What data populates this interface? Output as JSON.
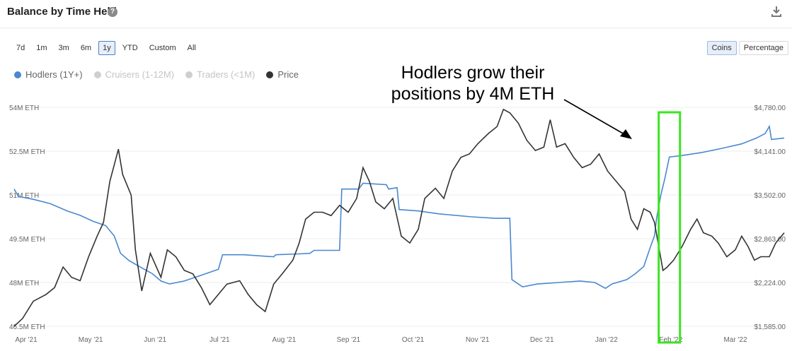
{
  "header": {
    "title": "Balance by Time Held",
    "help_icon": "question-circle-icon",
    "help_glyph": "?",
    "download_icon": "download-icon"
  },
  "range_buttons": [
    {
      "label": "7d",
      "active": false
    },
    {
      "label": "1m",
      "active": false
    },
    {
      "label": "3m",
      "active": false
    },
    {
      "label": "6m",
      "active": false
    },
    {
      "label": "1y",
      "active": true
    },
    {
      "label": "YTD",
      "active": false
    },
    {
      "label": "Custom",
      "active": false
    },
    {
      "label": "All",
      "active": false
    }
  ],
  "mode_buttons": [
    {
      "label": "Coins",
      "active": true
    },
    {
      "label": "Percentage",
      "active": false
    }
  ],
  "annotation": {
    "line1": "Hodlers grow their",
    "line2": "positions by 4M ETH"
  },
  "colors": {
    "hodlers": "#4a88d0",
    "price": "#333333",
    "disabled": "#cfcfcf",
    "highlight": "#3ae61f",
    "grid": "#eeeeee"
  },
  "chart_data": {
    "type": "line",
    "title": "Balance by Time Held",
    "legend": [
      {
        "name": "Hodlers (1Y+)",
        "enabled": true,
        "color": "#4a88d0"
      },
      {
        "name": "Cruisers (1-12M)",
        "enabled": false,
        "color": "#cfcfcf"
      },
      {
        "name": "Traders (<1M)",
        "enabled": false,
        "color": "#cfcfcf"
      },
      {
        "name": "Price",
        "enabled": true,
        "color": "#333333"
      }
    ],
    "legend_position": "top-left",
    "grid": true,
    "x_ticks": [
      "Apr '21",
      "May '21",
      "Jun '21",
      "Jul '21",
      "Aug '21",
      "Sep '21",
      "Oct '21",
      "Nov '21",
      "Dec '21",
      "Jan '22",
      "Feb '22",
      "Mar '22"
    ],
    "x_range": [
      "2021-03-24",
      "2022-03-21"
    ],
    "y_left": {
      "ticks": [
        "54M ETH",
        "52.5M ETH",
        "51M ETH",
        "49.5M ETH",
        "48M ETH",
        "46.5M ETH"
      ],
      "range": [
        46.5,
        54
      ],
      "unit": "M ETH"
    },
    "y_right": {
      "ticks": [
        "$4,780.00",
        "$4,141.00",
        "$3,502.00",
        "$2,863.00",
        "$2,224.00",
        "$1,585.00"
      ],
      "range": [
        1585,
        4780
      ],
      "unit": "USD"
    },
    "series": [
      {
        "name": "Hodlers (1Y+)",
        "axis": "left",
        "points": [
          [
            "2021-03-24",
            51.2
          ],
          [
            "2021-03-26",
            50.95
          ],
          [
            "2021-04-02",
            50.85
          ],
          [
            "2021-04-10",
            50.7
          ],
          [
            "2021-04-18",
            50.45
          ],
          [
            "2021-04-24",
            50.3
          ],
          [
            "2021-04-30",
            50.1
          ],
          [
            "2021-05-06",
            49.95
          ],
          [
            "2021-05-10",
            49.6
          ],
          [
            "2021-05-13",
            49.0
          ],
          [
            "2021-05-17",
            48.75
          ],
          [
            "2021-05-23",
            48.5
          ],
          [
            "2021-05-28",
            48.3
          ],
          [
            "2021-06-01",
            48.05
          ],
          [
            "2021-06-05",
            47.95
          ],
          [
            "2021-06-12",
            48.05
          ],
          [
            "2021-06-18",
            48.2
          ],
          [
            "2021-06-24",
            48.35
          ],
          [
            "2021-06-28",
            48.45
          ],
          [
            "2021-06-30",
            48.95
          ],
          [
            "2021-07-10",
            48.95
          ],
          [
            "2021-07-20",
            48.9
          ],
          [
            "2021-07-24",
            48.88
          ],
          [
            "2021-07-25",
            48.95
          ],
          [
            "2021-08-05",
            48.98
          ],
          [
            "2021-08-10",
            49.0
          ],
          [
            "2021-08-12",
            49.1
          ],
          [
            "2021-08-24",
            49.1
          ],
          [
            "2021-08-25",
            51.2
          ],
          [
            "2021-09-02",
            51.2
          ],
          [
            "2021-09-04",
            51.4
          ],
          [
            "2021-09-15",
            51.35
          ],
          [
            "2021-09-16",
            51.2
          ],
          [
            "2021-09-20",
            51.25
          ],
          [
            "2021-09-21",
            50.5
          ],
          [
            "2021-09-30",
            50.45
          ],
          [
            "2021-10-10",
            50.35
          ],
          [
            "2021-10-25",
            50.25
          ],
          [
            "2021-11-05",
            50.2
          ],
          [
            "2021-11-12",
            50.2
          ],
          [
            "2021-11-13",
            48.1
          ],
          [
            "2021-11-18",
            47.85
          ],
          [
            "2021-11-25",
            47.95
          ],
          [
            "2021-12-05",
            48.0
          ],
          [
            "2021-12-15",
            48.05
          ],
          [
            "2021-12-22",
            48.0
          ],
          [
            "2021-12-27",
            47.8
          ],
          [
            "2021-12-30",
            47.95
          ],
          [
            "2022-01-06",
            48.1
          ],
          [
            "2022-01-10",
            48.3
          ],
          [
            "2022-01-14",
            48.55
          ],
          [
            "2022-01-17",
            49.2
          ],
          [
            "2022-01-19",
            49.6
          ],
          [
            "2022-01-20",
            50.2
          ],
          [
            "2022-01-22",
            51.0
          ],
          [
            "2022-01-24",
            51.6
          ],
          [
            "2022-01-26",
            52.3
          ],
          [
            "2022-02-01",
            52.35
          ],
          [
            "2022-02-10",
            52.45
          ],
          [
            "2022-02-20",
            52.6
          ],
          [
            "2022-03-01",
            52.75
          ],
          [
            "2022-03-08",
            52.95
          ],
          [
            "2022-03-12",
            53.1
          ],
          [
            "2022-03-14",
            53.35
          ],
          [
            "2022-03-15",
            52.9
          ],
          [
            "2022-03-21",
            52.95
          ]
        ]
      },
      {
        "name": "Price",
        "axis": "right",
        "points": [
          [
            "2021-03-24",
            1585
          ],
          [
            "2021-03-28",
            1700
          ],
          [
            "2021-04-02",
            1950
          ],
          [
            "2021-04-08",
            2050
          ],
          [
            "2021-04-12",
            2150
          ],
          [
            "2021-04-16",
            2450
          ],
          [
            "2021-04-20",
            2300
          ],
          [
            "2021-04-24",
            2250
          ],
          [
            "2021-04-28",
            2600
          ],
          [
            "2021-05-02",
            2900
          ],
          [
            "2021-05-05",
            3100
          ],
          [
            "2021-05-08",
            3700
          ],
          [
            "2021-05-12",
            4170
          ],
          [
            "2021-05-14",
            3800
          ],
          [
            "2021-05-18",
            3500
          ],
          [
            "2021-05-20",
            2700
          ],
          [
            "2021-05-23",
            2100
          ],
          [
            "2021-05-27",
            2650
          ],
          [
            "2021-06-01",
            2300
          ],
          [
            "2021-06-04",
            2700
          ],
          [
            "2021-06-08",
            2600
          ],
          [
            "2021-06-12",
            2400
          ],
          [
            "2021-06-16",
            2350
          ],
          [
            "2021-06-20",
            2150
          ],
          [
            "2021-06-24",
            1900
          ],
          [
            "2021-06-28",
            2050
          ],
          [
            "2021-07-02",
            2200
          ],
          [
            "2021-07-08",
            2250
          ],
          [
            "2021-07-12",
            2050
          ],
          [
            "2021-07-16",
            1900
          ],
          [
            "2021-07-20",
            1800
          ],
          [
            "2021-07-24",
            2200
          ],
          [
            "2021-07-28",
            2350
          ],
          [
            "2021-08-02",
            2550
          ],
          [
            "2021-08-05",
            2800
          ],
          [
            "2021-08-08",
            3150
          ],
          [
            "2021-08-12",
            3250
          ],
          [
            "2021-08-16",
            3250
          ],
          [
            "2021-08-20",
            3200
          ],
          [
            "2021-08-24",
            3350
          ],
          [
            "2021-08-28",
            3250
          ],
          [
            "2021-09-01",
            3450
          ],
          [
            "2021-09-04",
            3900
          ],
          [
            "2021-09-07",
            3700
          ],
          [
            "2021-09-10",
            3400
          ],
          [
            "2021-09-14",
            3300
          ],
          [
            "2021-09-18",
            3450
          ],
          [
            "2021-09-22",
            2900
          ],
          [
            "2021-09-26",
            2800
          ],
          [
            "2021-09-30",
            3000
          ],
          [
            "2021-10-03",
            3450
          ],
          [
            "2021-10-08",
            3600
          ],
          [
            "2021-10-12",
            3450
          ],
          [
            "2021-10-16",
            3850
          ],
          [
            "2021-10-20",
            4050
          ],
          [
            "2021-10-24",
            4100
          ],
          [
            "2021-10-28",
            4250
          ],
          [
            "2021-11-02",
            4400
          ],
          [
            "2021-11-06",
            4500
          ],
          [
            "2021-11-09",
            4750
          ],
          [
            "2021-11-12",
            4700
          ],
          [
            "2021-11-16",
            4550
          ],
          [
            "2021-11-20",
            4300
          ],
          [
            "2021-11-24",
            4150
          ],
          [
            "2021-11-28",
            4200
          ],
          [
            "2021-12-01",
            4600
          ],
          [
            "2021-12-04",
            4200
          ],
          [
            "2021-12-08",
            4250
          ],
          [
            "2021-12-12",
            4050
          ],
          [
            "2021-12-16",
            3900
          ],
          [
            "2021-12-20",
            3950
          ],
          [
            "2021-12-24",
            4100
          ],
          [
            "2021-12-28",
            3850
          ],
          [
            "2022-01-01",
            3700
          ],
          [
            "2022-01-05",
            3550
          ],
          [
            "2022-01-08",
            3150
          ],
          [
            "2022-01-11",
            3000
          ],
          [
            "2022-01-14",
            3300
          ],
          [
            "2022-01-17",
            3250
          ],
          [
            "2022-01-19",
            3100
          ],
          [
            "2022-01-21",
            2750
          ],
          [
            "2022-01-23",
            2400
          ],
          [
            "2022-01-25",
            2450
          ],
          [
            "2022-01-28",
            2550
          ],
          [
            "2022-02-01",
            2750
          ],
          [
            "2022-02-05",
            3000
          ],
          [
            "2022-02-08",
            3150
          ],
          [
            "2022-02-11",
            2950
          ],
          [
            "2022-02-15",
            2900
          ],
          [
            "2022-02-18",
            2800
          ],
          [
            "2022-02-22",
            2600
          ],
          [
            "2022-02-26",
            2700
          ],
          [
            "2022-03-01",
            2900
          ],
          [
            "2022-03-04",
            2750
          ],
          [
            "2022-03-07",
            2550
          ],
          [
            "2022-03-10",
            2600
          ],
          [
            "2022-03-14",
            2600
          ],
          [
            "2022-03-17",
            2800
          ],
          [
            "2022-03-21",
            2950
          ]
        ]
      }
    ],
    "highlight": {
      "from": "2022-01-21",
      "to": "2022-01-31"
    }
  }
}
